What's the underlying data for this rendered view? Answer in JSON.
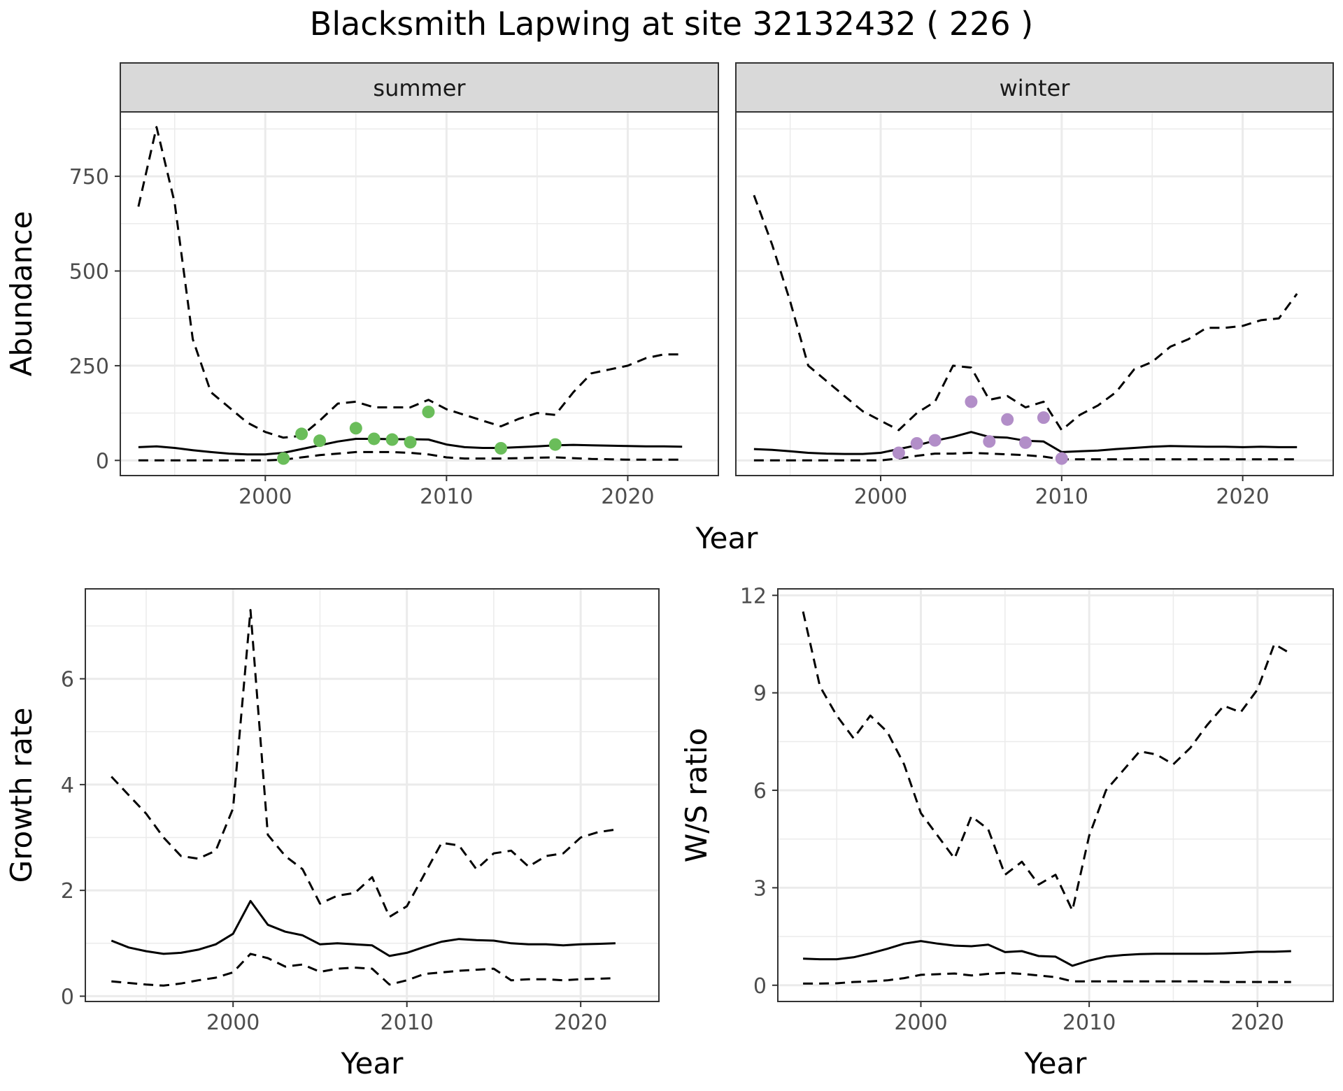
{
  "title": "Blacksmith Lapwing at site 32132432 ( 226 )",
  "colors": {
    "summer": "#6abd5a",
    "winter": "#b28ec8",
    "line": "#000000",
    "grid": "#ebebeb"
  },
  "chart_data": [
    {
      "type": "line",
      "panel": "summer",
      "strip_label": "summer",
      "xlabel": "Year",
      "ylabel": "Abundance",
      "xlim": [
        1992,
        2025
      ],
      "ylim": [
        -40,
        920
      ],
      "x_ticks": [
        2000,
        2010,
        2020
      ],
      "y_ticks": [
        0,
        250,
        500,
        750
      ],
      "x": [
        1993,
        1994,
        1995,
        1996,
        1997,
        1998,
        1999,
        2000,
        2001,
        2002,
        2003,
        2004,
        2005,
        2006,
        2007,
        2008,
        2009,
        2010,
        2011,
        2012,
        2013,
        2014,
        2015,
        2016,
        2017,
        2018,
        2019,
        2020,
        2021,
        2022,
        2023
      ],
      "series": [
        {
          "role": "mean",
          "style": "solid",
          "values": [
            35,
            37,
            33,
            27,
            22,
            18,
            16,
            16,
            20,
            30,
            40,
            50,
            57,
            57,
            56,
            56,
            55,
            42,
            35,
            33,
            33,
            35,
            37,
            40,
            41,
            40,
            39,
            38,
            37,
            37,
            36
          ]
        },
        {
          "role": "upper",
          "style": "dashed",
          "values": [
            670,
            880,
            680,
            320,
            180,
            140,
            100,
            75,
            60,
            65,
            105,
            150,
            155,
            140,
            140,
            140,
            160,
            135,
            120,
            105,
            90,
            110,
            125,
            120,
            180,
            230,
            240,
            250,
            270,
            280,
            280
          ]
        },
        {
          "role": "lower",
          "style": "dashed",
          "values": [
            0,
            0,
            0,
            0,
            0,
            0,
            0,
            0,
            2,
            8,
            14,
            18,
            22,
            22,
            22,
            20,
            16,
            8,
            5,
            5,
            5,
            6,
            7,
            8,
            6,
            4,
            3,
            2,
            2,
            2,
            2
          ]
        }
      ],
      "points": {
        "color": "#6abd5a",
        "x": [
          2001,
          2002,
          2003,
          2005,
          2006,
          2007,
          2008,
          2009,
          2013,
          2016
        ],
        "y": [
          5,
          70,
          52,
          85,
          57,
          55,
          48,
          128,
          32,
          42
        ]
      }
    },
    {
      "type": "line",
      "panel": "winter",
      "strip_label": "winter",
      "xlabel": "Year",
      "ylabel": "Abundance",
      "xlim": [
        1992,
        2025
      ],
      "ylim": [
        -40,
        920
      ],
      "x_ticks": [
        2000,
        2010,
        2020
      ],
      "y_ticks": [
        0,
        250,
        500,
        750
      ],
      "x": [
        1993,
        1994,
        1995,
        1996,
        1997,
        1998,
        1999,
        2000,
        2001,
        2002,
        2003,
        2004,
        2005,
        2006,
        2007,
        2008,
        2009,
        2010,
        2011,
        2012,
        2013,
        2014,
        2015,
        2016,
        2017,
        2018,
        2019,
        2020,
        2021,
        2022,
        2023
      ],
      "series": [
        {
          "role": "mean",
          "style": "solid",
          "values": [
            30,
            28,
            24,
            20,
            18,
            17,
            17,
            20,
            30,
            40,
            52,
            62,
            75,
            62,
            60,
            52,
            50,
            22,
            24,
            26,
            30,
            33,
            36,
            38,
            37,
            36,
            36,
            35,
            36,
            35,
            35
          ]
        },
        {
          "role": "upper",
          "style": "dashed",
          "values": [
            700,
            570,
            420,
            250,
            210,
            170,
            130,
            105,
            80,
            125,
            155,
            250,
            245,
            160,
            170,
            140,
            155,
            80,
            120,
            145,
            180,
            240,
            260,
            300,
            320,
            350,
            350,
            355,
            370,
            375,
            440
          ]
        },
        {
          "role": "lower",
          "style": "dashed",
          "values": [
            0,
            0,
            0,
            0,
            0,
            0,
            0,
            0,
            5,
            12,
            18,
            18,
            20,
            18,
            16,
            14,
            10,
            3,
            3,
            3,
            3,
            3,
            3,
            3,
            3,
            3,
            3,
            3,
            3,
            3,
            3
          ]
        }
      ],
      "points": {
        "color": "#b28ec8",
        "x": [
          2001,
          2002,
          2003,
          2005,
          2006,
          2007,
          2008,
          2009,
          2010
        ],
        "y": [
          20,
          45,
          53,
          155,
          50,
          108,
          47,
          113,
          5
        ]
      }
    },
    {
      "type": "line",
      "panel": "growth",
      "xlabel": "Year",
      "ylabel": "Growth rate",
      "xlim": [
        1991.5,
        2024.5
      ],
      "ylim": [
        -0.1,
        7.7
      ],
      "x_ticks": [
        2000,
        2010,
        2020
      ],
      "y_ticks": [
        0,
        2,
        4,
        6
      ],
      "x": [
        1993,
        1994,
        1995,
        1996,
        1997,
        1998,
        1999,
        2000,
        2001,
        2002,
        2003,
        2004,
        2005,
        2006,
        2007,
        2008,
        2009,
        2010,
        2011,
        2012,
        2013,
        2014,
        2015,
        2016,
        2017,
        2018,
        2019,
        2020,
        2021,
        2022
      ],
      "series": [
        {
          "role": "mean",
          "style": "solid",
          "values": [
            1.05,
            0.92,
            0.85,
            0.8,
            0.82,
            0.88,
            0.98,
            1.18,
            1.8,
            1.35,
            1.22,
            1.15,
            0.98,
            1.0,
            0.98,
            0.96,
            0.76,
            0.82,
            0.93,
            1.03,
            1.08,
            1.06,
            1.05,
            1.0,
            0.98,
            0.98,
            0.96,
            0.98,
            0.99,
            1.0
          ]
        },
        {
          "role": "upper",
          "style": "dashed",
          "values": [
            4.15,
            3.8,
            3.45,
            3.0,
            2.65,
            2.6,
            2.75,
            3.55,
            7.3,
            3.05,
            2.65,
            2.4,
            1.75,
            1.9,
            1.95,
            2.25,
            1.5,
            1.7,
            2.3,
            2.9,
            2.85,
            2.4,
            2.7,
            2.75,
            2.45,
            2.65,
            2.7,
            3.0,
            3.1,
            3.15
          ]
        },
        {
          "role": "lower",
          "style": "dashed",
          "values": [
            0.28,
            0.25,
            0.22,
            0.2,
            0.24,
            0.3,
            0.35,
            0.45,
            0.8,
            0.72,
            0.56,
            0.6,
            0.46,
            0.52,
            0.54,
            0.52,
            0.22,
            0.3,
            0.42,
            0.45,
            0.48,
            0.5,
            0.52,
            0.3,
            0.32,
            0.32,
            0.3,
            0.32,
            0.33,
            0.34
          ]
        }
      ]
    },
    {
      "type": "line",
      "panel": "ratio",
      "xlabel": "Year",
      "ylabel": "W/S ratio",
      "xlim": [
        1991.5,
        2024.5
      ],
      "ylim": [
        -0.5,
        12.2
      ],
      "x_ticks": [
        2000,
        2010,
        2020
      ],
      "y_ticks": [
        0,
        3,
        6,
        9,
        12
      ],
      "x": [
        1993,
        1994,
        1995,
        1996,
        1997,
        1998,
        1999,
        2000,
        2001,
        2002,
        2003,
        2004,
        2005,
        2006,
        2007,
        2008,
        2009,
        2010,
        2011,
        2012,
        2013,
        2014,
        2015,
        2016,
        2017,
        2018,
        2019,
        2020,
        2021,
        2022
      ],
      "series": [
        {
          "role": "mean",
          "style": "solid",
          "values": [
            0.82,
            0.8,
            0.8,
            0.86,
            0.98,
            1.12,
            1.28,
            1.36,
            1.28,
            1.22,
            1.2,
            1.25,
            1.02,
            1.05,
            0.9,
            0.88,
            0.6,
            0.76,
            0.88,
            0.93,
            0.96,
            0.97,
            0.97,
            0.97,
            0.97,
            0.98,
            1.0,
            1.03,
            1.03,
            1.05
          ]
        },
        {
          "role": "upper",
          "style": "dashed",
          "values": [
            11.5,
            9.2,
            8.3,
            7.6,
            8.3,
            7.8,
            6.8,
            5.3,
            4.6,
            3.9,
            5.2,
            4.8,
            3.4,
            3.8,
            3.1,
            3.4,
            2.3,
            4.6,
            6.0,
            6.6,
            7.2,
            7.1,
            6.8,
            7.3,
            8.0,
            8.6,
            8.4,
            9.1,
            10.5,
            10.2
          ]
        },
        {
          "role": "lower",
          "style": "dashed",
          "values": [
            0.05,
            0.05,
            0.06,
            0.1,
            0.12,
            0.15,
            0.22,
            0.32,
            0.34,
            0.36,
            0.3,
            0.35,
            0.38,
            0.35,
            0.3,
            0.25,
            0.12,
            0.12,
            0.12,
            0.12,
            0.12,
            0.12,
            0.12,
            0.12,
            0.12,
            0.1,
            0.1,
            0.1,
            0.1,
            0.1
          ]
        }
      ]
    }
  ]
}
